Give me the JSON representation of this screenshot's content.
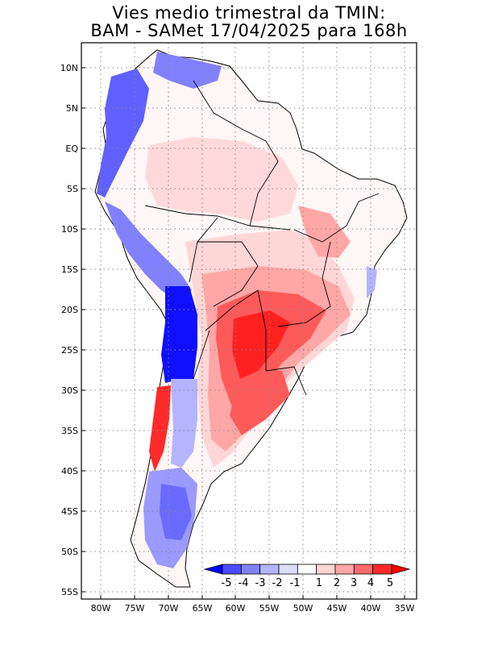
{
  "title": {
    "line1": "Vies medio trimestral da TMIN:",
    "line2": "BAM - SAMet 17/04/2025  para 168h"
  },
  "map": {
    "lat_labels": [
      "10N",
      "5N",
      "EQ",
      "5S",
      "10S",
      "15S",
      "20S",
      "25S",
      "30S",
      "35S",
      "40S",
      "45S",
      "50S",
      "55S"
    ],
    "lon_labels": [
      "80W",
      "75W",
      "70W",
      "65W",
      "60W",
      "55W",
      "50W",
      "45W",
      "40W",
      "35W"
    ],
    "lon_range": [
      -82.5,
      -34
    ],
    "lat_range": [
      -56,
      12.5
    ],
    "gridlines": "dotted"
  },
  "colorbar": {
    "labels": [
      "-5",
      "-4",
      "-3",
      "-2",
      "-1",
      "1",
      "2",
      "3",
      "4",
      "5"
    ],
    "colors": [
      "#0000ff",
      "#4b4bff",
      "#8181ff",
      "#b4b4ff",
      "#dcdcff",
      "#ffffff",
      "#ffd6d6",
      "#ffa6a6",
      "#ff6a6a",
      "#ff2a2a",
      "#ff0000"
    ]
  }
}
